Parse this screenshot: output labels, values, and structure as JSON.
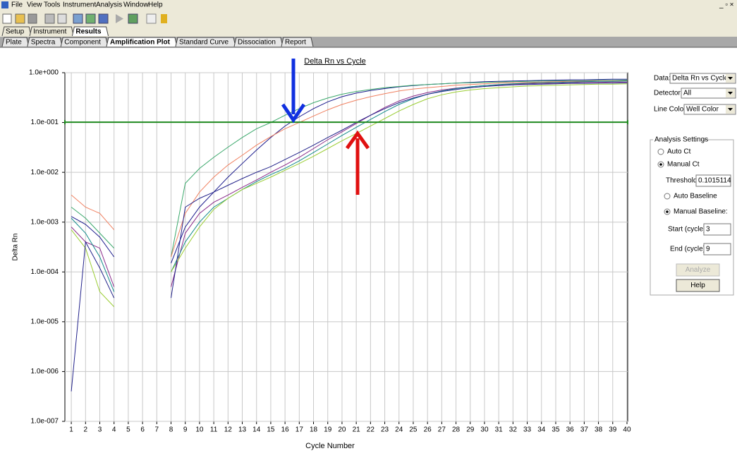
{
  "menu": [
    "File",
    "View",
    "Tools",
    "Instrument",
    "Analysis",
    "Window",
    "Help"
  ],
  "tabs_top": [
    "Setup",
    "Instrument",
    "Results"
  ],
  "tabs_sub": [
    "Plate",
    "Spectra",
    "Component",
    "Amplification Plot",
    "Standard Curve",
    "Dissociation",
    "Report"
  ],
  "chart_data": {
    "type": "line",
    "title": "Delta Rn vs Cycle",
    "x_label": "Cycle Number",
    "y_label": "Delta Rn",
    "log_scale_y": true,
    "grid": true,
    "threshold": 0.1015114,
    "threshold_color": "#1f8a1f",
    "xlim": [
      0.55,
      40.05
    ],
    "ylim": [
      1e-07,
      1
    ],
    "xticks": [
      1,
      2,
      3,
      4,
      5,
      6,
      7,
      8,
      9,
      10,
      11,
      12,
      13,
      14,
      15,
      16,
      17,
      18,
      19,
      20,
      21,
      22,
      23,
      24,
      25,
      26,
      27,
      28,
      29,
      30,
      31,
      32,
      33,
      34,
      35,
      36,
      37,
      38,
      39,
      40
    ],
    "yticks": [
      {
        "value": 1,
        "label": "1.0e+000"
      },
      {
        "value": 0.1,
        "label": "1.0e-001"
      },
      {
        "value": 0.01,
        "label": "1.0e-002"
      },
      {
        "value": 0.001,
        "label": "1.0e-003"
      },
      {
        "value": 0.0001,
        "label": "1.0e-004"
      },
      {
        "value": 1e-05,
        "label": "1.0e-005"
      },
      {
        "value": 1e-06,
        "label": "1.0e-006"
      },
      {
        "value": 1e-07,
        "label": "1.0e-007"
      }
    ],
    "x": [
      1,
      2,
      3,
      4,
      5,
      6,
      7,
      8,
      9,
      10,
      11,
      12,
      13,
      14,
      15,
      16,
      17,
      18,
      19,
      20,
      21,
      22,
      23,
      24,
      25,
      26,
      27,
      28,
      29,
      30,
      31,
      32,
      33,
      34,
      35,
      36,
      37,
      38,
      39,
      40
    ],
    "series": [
      {
        "color": "#1a1a8c",
        "values": [
          0.0013,
          0.0009,
          0.0005,
          0.0002,
          null,
          null,
          null,
          0.00015,
          0.0008,
          0.002,
          0.004,
          0.008,
          0.015,
          0.028,
          0.05,
          0.085,
          0.13,
          0.19,
          0.26,
          0.33,
          0.39,
          0.44,
          0.48,
          0.52,
          0.55,
          0.58,
          0.6,
          0.62,
          0.64,
          0.66,
          0.67,
          0.68,
          0.69,
          0.7,
          0.71,
          0.72,
          0.72,
          0.73,
          0.74,
          0.74
        ]
      },
      {
        "color": "#3aa86b",
        "values": [
          0.002,
          0.0012,
          0.0006,
          0.0003,
          null,
          null,
          null,
          0.0002,
          0.006,
          0.012,
          0.02,
          0.032,
          0.05,
          0.075,
          0.1,
          0.14,
          0.19,
          0.25,
          0.31,
          0.37,
          0.42,
          0.46,
          0.5,
          0.53,
          0.56,
          0.58,
          0.6,
          0.62,
          0.63,
          0.64,
          0.65,
          0.66,
          0.67,
          0.68,
          0.68,
          0.69,
          0.69,
          0.7,
          0.7,
          0.71
        ]
      },
      {
        "color": "#f08060",
        "values": [
          0.0035,
          0.002,
          0.0015,
          0.0007,
          null,
          null,
          null,
          0.0002,
          0.0015,
          0.004,
          0.008,
          0.014,
          0.022,
          0.035,
          0.052,
          0.075,
          0.1,
          0.135,
          0.18,
          0.23,
          0.28,
          0.33,
          0.38,
          0.43,
          0.47,
          0.5,
          0.53,
          0.56,
          0.58,
          0.6,
          0.62,
          0.63,
          0.64,
          0.65,
          0.66,
          0.67,
          0.67,
          0.68,
          0.68,
          0.69
        ]
      },
      {
        "color": "#8a2a8a",
        "values": [
          0.0008,
          0.0004,
          0.0003,
          5e-05,
          null,
          null,
          null,
          5e-05,
          0.0006,
          0.0015,
          0.0025,
          0.0035,
          0.005,
          0.007,
          0.01,
          0.014,
          0.02,
          0.03,
          0.045,
          0.065,
          0.095,
          0.14,
          0.2,
          0.27,
          0.34,
          0.4,
          0.45,
          0.49,
          0.52,
          0.55,
          0.57,
          0.59,
          0.6,
          0.61,
          0.62,
          0.63,
          0.64,
          0.64,
          0.65,
          0.65
        ]
      },
      {
        "color": "#138a8a",
        "values": [
          0.0012,
          0.0006,
          0.0002,
          4e-05,
          null,
          null,
          null,
          0.0001,
          0.0004,
          0.001,
          0.002,
          0.003,
          0.0045,
          0.0065,
          0.009,
          0.012,
          0.017,
          0.025,
          0.037,
          0.055,
          0.08,
          0.115,
          0.165,
          0.23,
          0.3,
          0.37,
          0.43,
          0.48,
          0.52,
          0.55,
          0.58,
          0.6,
          0.62,
          0.63,
          0.64,
          0.65,
          0.66,
          0.67,
          0.67,
          0.68
        ]
      },
      {
        "color": "#9acd32",
        "values": [
          0.0007,
          0.0003,
          4e-05,
          2e-05,
          null,
          null,
          null,
          0.0001,
          0.0003,
          0.0008,
          0.0018,
          0.003,
          0.0045,
          0.006,
          0.008,
          0.011,
          0.015,
          0.021,
          0.03,
          0.043,
          0.06,
          0.085,
          0.12,
          0.17,
          0.23,
          0.3,
          0.36,
          0.41,
          0.45,
          0.48,
          0.5,
          0.52,
          0.54,
          0.55,
          0.56,
          0.57,
          0.58,
          0.59,
          0.59,
          0.6
        ]
      },
      {
        "color": "#22228a",
        "values": [
          4e-07,
          0.0004,
          0.00012,
          3e-05,
          null,
          null,
          null,
          3e-05,
          0.002,
          0.003,
          0.004,
          0.0055,
          0.0075,
          0.01,
          0.013,
          0.018,
          0.025,
          0.035,
          0.05,
          0.07,
          0.1,
          0.14,
          0.19,
          0.25,
          0.31,
          0.37,
          0.42,
          0.46,
          0.5,
          0.53,
          0.55,
          0.57,
          0.58,
          0.59,
          0.6,
          0.61,
          0.61,
          0.62,
          0.62,
          0.63
        ]
      }
    ]
  },
  "panel": {
    "data_label": "Data:",
    "data_value": "Delta Rn vs Cycle",
    "detector_label": "Detector:",
    "detector_value": "All",
    "line_color_label": "Line Color:",
    "line_color_value": "Well Color",
    "group": "Analysis Settings",
    "auto_ct": "Auto Ct",
    "manual_ct": "Manual Ct",
    "threshold_label": "Threshold:",
    "auto_baseline": "Auto Baseline",
    "manual_baseline": "Manual Baseline:",
    "start_label": "Start (cycle):",
    "start_value": 3,
    "end_label": "End (cycle):",
    "end_value": 9,
    "analyze": "Analyze",
    "help": "Help"
  }
}
